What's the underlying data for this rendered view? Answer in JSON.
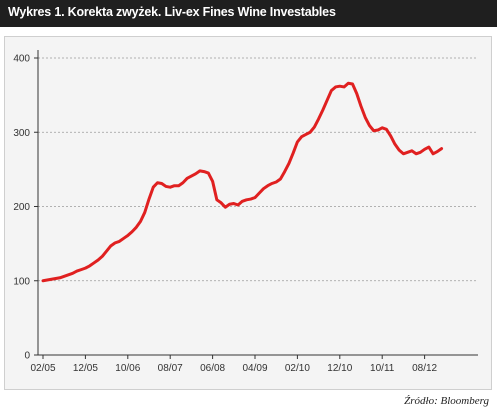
{
  "header": {
    "title": "Wykres 1. Korekta zwyżek. Liv-ex Fines Wine Investables"
  },
  "footer": {
    "source": "Źródło: Bloomberg"
  },
  "colors": {
    "line": "#e02020",
    "grid": "#9a9a9a",
    "panel": "#f4f4f4",
    "header": "#1f1f1f"
  },
  "chart_data": {
    "type": "line",
    "title": "Wykres 1. Korekta zwyżek. Liv-ex Fines Wine Investables",
    "xlabel": "",
    "ylabel": "",
    "ylim": [
      0,
      400
    ],
    "yticks": [
      0,
      100,
      200,
      300,
      400
    ],
    "xticks": [
      "02/05",
      "12/05",
      "10/06",
      "08/07",
      "06/08",
      "04/09",
      "02/10",
      "12/10",
      "10/11",
      "08/12"
    ],
    "grid": "horizontal dashed",
    "legend": "none",
    "series": [
      {
        "x": [
          "02/05",
          "03/05",
          "04/05",
          "05/05",
          "06/05",
          "07/05",
          "08/05",
          "09/05",
          "10/05",
          "11/05",
          "12/05",
          "01/06",
          "02/06",
          "03/06",
          "04/06",
          "05/06",
          "06/06",
          "07/06",
          "08/06",
          "09/06",
          "10/06",
          "11/06",
          "12/06",
          "01/07",
          "02/07",
          "03/07",
          "04/07",
          "05/07",
          "06/07",
          "07/07",
          "08/07",
          "09/07",
          "10/07",
          "11/07",
          "12/07",
          "01/08",
          "02/08",
          "03/08",
          "04/08",
          "05/08",
          "06/08",
          "07/08",
          "08/08",
          "09/08",
          "10/08",
          "11/08",
          "12/08",
          "01/09",
          "02/09",
          "03/09",
          "04/09",
          "05/09",
          "06/09",
          "07/09",
          "08/09",
          "09/09",
          "10/09",
          "11/09",
          "12/09",
          "01/10",
          "02/10",
          "03/10",
          "04/10",
          "05/10",
          "06/10",
          "07/10",
          "08/10",
          "09/10",
          "10/10",
          "11/10",
          "12/10",
          "01/11",
          "02/11",
          "03/11",
          "04/11",
          "05/11",
          "06/11",
          "07/11",
          "08/11",
          "09/11",
          "10/11",
          "11/11",
          "12/11",
          "01/12",
          "02/12",
          "03/12",
          "04/12",
          "05/12",
          "06/12",
          "07/12",
          "08/12",
          "09/12",
          "10/12",
          "11/12",
          "12/12"
        ],
        "values": [
          100,
          101,
          102,
          103,
          104,
          106,
          108,
          110,
          113,
          115,
          117,
          120,
          124,
          128,
          133,
          140,
          147,
          151,
          153,
          157,
          161,
          166,
          172,
          180,
          192,
          210,
          226,
          232,
          231,
          227,
          226,
          228,
          228,
          232,
          238,
          241,
          244,
          248,
          247,
          245,
          234,
          209,
          205,
          199,
          203,
          204,
          202,
          207,
          209,
          210,
          212,
          218,
          224,
          228,
          231,
          233,
          237,
          247,
          258,
          272,
          287,
          294,
          297,
          300,
          307,
          318,
          330,
          343,
          356,
          361,
          362,
          361,
          366,
          365,
          352,
          335,
          320,
          309,
          302,
          303,
          306,
          304,
          295,
          284,
          276,
          271,
          273,
          275,
          271,
          273,
          277,
          280,
          271,
          274,
          278
        ]
      }
    ]
  }
}
